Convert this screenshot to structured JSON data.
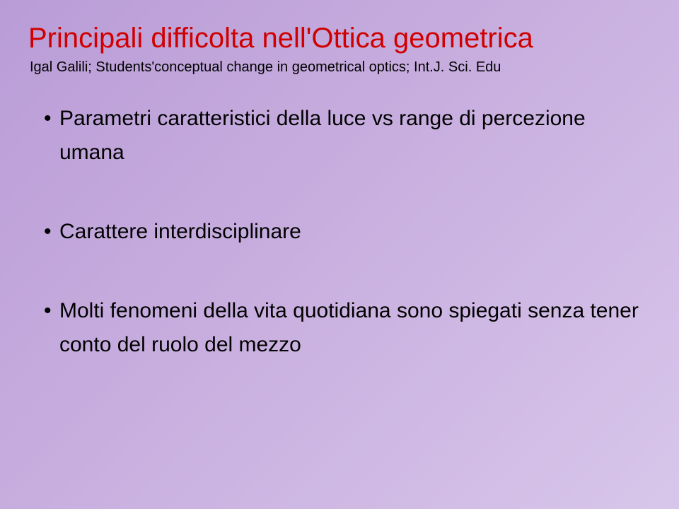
{
  "title": "Principali difficolta nell'Ottica geometrica",
  "subtitle": "Igal Galili; Students'conceptual change in geometrical optics; Int.J. Sci. Edu",
  "bullets": [
    {
      "text": "Parametri caratteristici della luce vs range di percezione umana",
      "cont": ""
    },
    {
      "text": "Carattere interdisciplinare",
      "cont": ""
    },
    {
      "text": "Molti fenomeni della vita quotidiana sono spiegati senza tener conto del ruolo del mezzo",
      "cont": ""
    }
  ],
  "colors": {
    "title": "#d00000",
    "body": "#000000",
    "bg_start": "#b99cd6",
    "bg_end": "#d8c6ea"
  },
  "font_sizes": {
    "title": 40,
    "subtitle": 20,
    "bullet": 30
  }
}
